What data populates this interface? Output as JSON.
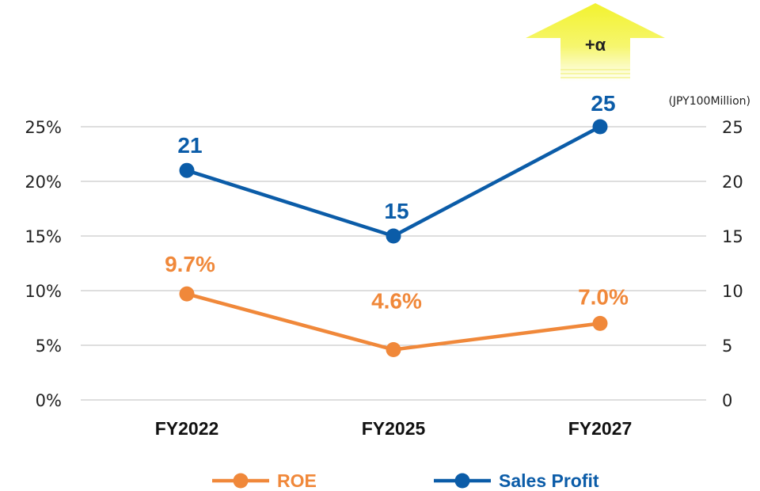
{
  "chart_data": {
    "type": "line",
    "categories": [
      "FY2022",
      "FY2025",
      "FY2027"
    ],
    "left_axis": {
      "ticks": [
        "0%",
        "5%",
        "10%",
        "15%",
        "20%",
        "25%"
      ],
      "range": [
        0,
        25
      ]
    },
    "right_axis": {
      "unit": "(JPY100Million)",
      "ticks": [
        "0",
        "5",
        "10",
        "15",
        "20",
        "25"
      ],
      "range": [
        0,
        25
      ]
    },
    "grid": true,
    "legend_position": "bottom",
    "series": [
      {
        "name": "ROE",
        "axis": "left",
        "color": "#F0883A",
        "values": [
          9.7,
          4.6,
          7.0
        ],
        "labels": [
          "9.7%",
          "4.6%",
          "7.0%"
        ]
      },
      {
        "name": "Sales Profit",
        "axis": "right",
        "color": "#0B5CA8",
        "values": [
          21,
          15,
          25
        ],
        "labels": [
          "21",
          "15",
          "25"
        ]
      }
    ],
    "annotation": {
      "text": "+α",
      "shape": "up-arrow",
      "color": "#F2F23A",
      "category": "FY2027"
    }
  }
}
